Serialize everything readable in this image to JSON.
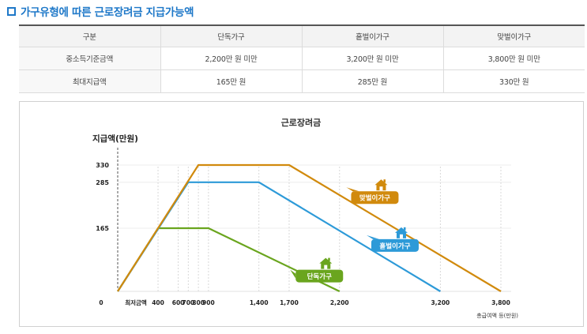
{
  "section_title": "가구유형에 따른 근로장려금 지급가능액",
  "table": {
    "headers": [
      "구분",
      "단독가구",
      "홑벌이가구",
      "맞벌이가구"
    ],
    "rows": [
      [
        "중소득기준금액",
        "2,200만 원 미만",
        "3,200만 원 미만",
        "3,800만 원 미만"
      ],
      [
        "최대지급액",
        "165만 원",
        "285만 원",
        "330만 원"
      ]
    ]
  },
  "chart_data": {
    "type": "line",
    "title": "근로장려금",
    "ylabel": "지급액(만원)",
    "xlabel": "총급여액 등(만원)",
    "origin_label": "0",
    "x_start_label": "최저금액",
    "x_ticks": [
      "400",
      "600",
      "700",
      "800",
      "900",
      "1,400",
      "1,700",
      "2,200",
      "3,200",
      "3,800"
    ],
    "x_tick_values": [
      400,
      600,
      700,
      800,
      900,
      1400,
      1700,
      2200,
      3200,
      3800
    ],
    "y_ticks": [
      "330",
      "285",
      "165"
    ],
    "y_tick_values": [
      330,
      285,
      165
    ],
    "series": [
      {
        "name": "단독가구",
        "color": "#6aa51e",
        "label_side": "left",
        "points": [
          [
            0,
            0
          ],
          [
            400,
            165
          ],
          [
            900,
            165
          ],
          [
            2200,
            0
          ]
        ],
        "label_at": [
          2000,
          40
        ]
      },
      {
        "name": "홑벌이가구",
        "color": "#2d9ad8",
        "label_side": "right",
        "points": [
          [
            0,
            0
          ],
          [
            700,
            285
          ],
          [
            1400,
            285
          ],
          [
            3200,
            0
          ]
        ],
        "label_at": [
          2750,
          120
        ]
      },
      {
        "name": "맞벌이가구",
        "color": "#d18a0d",
        "label_side": "right",
        "points": [
          [
            0,
            0
          ],
          [
            800,
            330
          ],
          [
            1700,
            330
          ],
          [
            3800,
            0
          ]
        ],
        "label_at": [
          2550,
          245
        ]
      }
    ],
    "gridlines": true
  }
}
